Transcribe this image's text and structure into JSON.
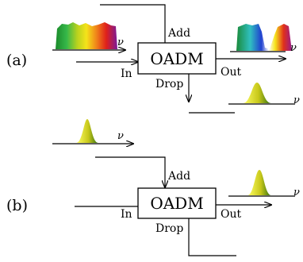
{
  "panels": {
    "a": {
      "label": "(a)"
    },
    "b": {
      "label": "(b)"
    }
  },
  "device": {
    "name": "OADM"
  },
  "ports": {
    "add": "Add",
    "drop": "Drop",
    "in": "In",
    "out": "Out"
  },
  "axis": {
    "nu": "ν"
  },
  "colors": {
    "line": "#000000",
    "box_fill": "#ffffff",
    "pulse_light": "#ffff66",
    "pulse_dark": "#2f6f10"
  }
}
